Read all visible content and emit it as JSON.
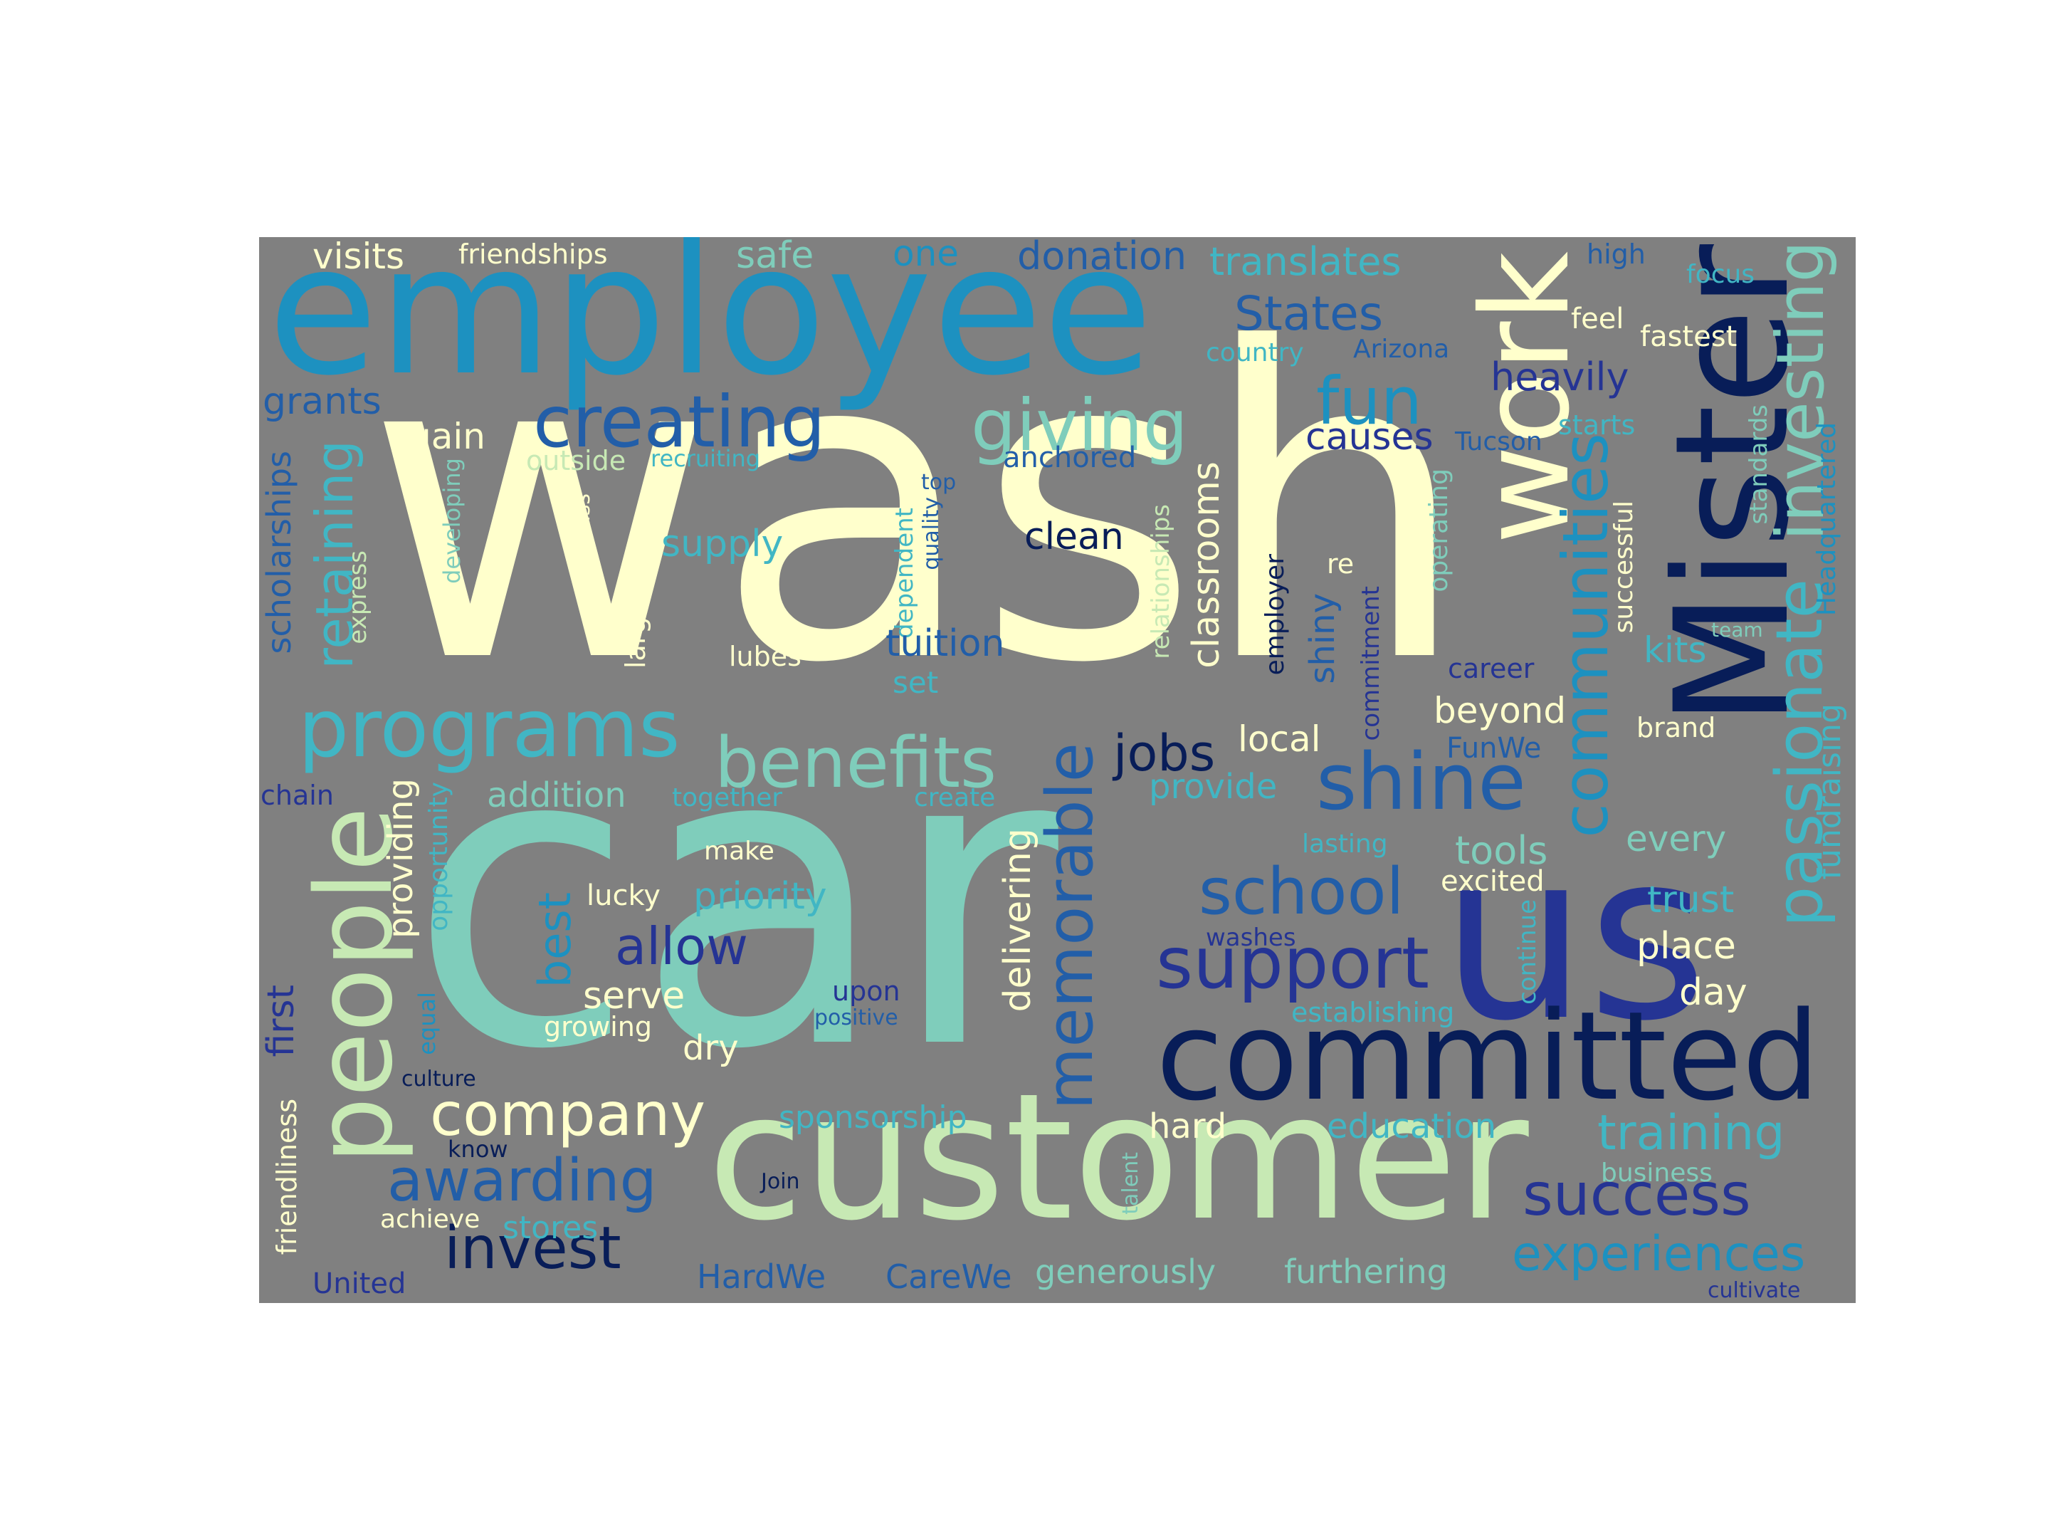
{
  "palette": {
    "background": "#808080",
    "page": "#ffffff",
    "cream": "#ffffcc",
    "light_green": "#c7e9b4",
    "teal": "#7fcdbb",
    "aqua": "#41b6c4",
    "blue": "#1d91c0",
    "mid_blue": "#225ea8",
    "indigo": "#253494",
    "navy": "#081d58"
  },
  "words": [
    {
      "text": "wash",
      "color": "#ffffcc"
    },
    {
      "text": "car",
      "color": "#7fcdbb"
    },
    {
      "text": "employee",
      "color": "#1d91c0"
    },
    {
      "text": "customer",
      "color": "#c7e9b4"
    },
    {
      "text": "us",
      "color": "#253494"
    },
    {
      "text": "Mister",
      "color": "#081d58"
    },
    {
      "text": "committed",
      "color": "#081d58"
    },
    {
      "text": "work",
      "color": "#ffffcc"
    },
    {
      "text": "people",
      "color": "#c7e9b4"
    },
    {
      "text": "programs",
      "color": "#41b6c4"
    },
    {
      "text": "creating",
      "color": "#225ea8"
    },
    {
      "text": "giving",
      "color": "#7fcdbb"
    },
    {
      "text": "benefits",
      "color": "#7fcdbb"
    },
    {
      "text": "shine",
      "color": "#225ea8"
    },
    {
      "text": "communities",
      "color": "#1d91c0"
    },
    {
      "text": "investing",
      "color": "#7fcdbb"
    },
    {
      "text": "passionate",
      "color": "#41b6c4"
    },
    {
      "text": "support",
      "color": "#253494"
    },
    {
      "text": "school",
      "color": "#225ea8"
    },
    {
      "text": "memorable",
      "color": "#225ea8"
    },
    {
      "text": "success",
      "color": "#253494"
    },
    {
      "text": "company",
      "color": "#ffffcc"
    },
    {
      "text": "awarding",
      "color": "#225ea8"
    },
    {
      "text": "invest",
      "color": "#081d58"
    },
    {
      "text": "experiences",
      "color": "#1d91c0"
    },
    {
      "text": "training",
      "color": "#41b6c4"
    },
    {
      "text": "retaining",
      "color": "#41b6c4"
    },
    {
      "text": "allow",
      "color": "#253494"
    },
    {
      "text": "jobs",
      "color": "#081d58"
    },
    {
      "text": "fun",
      "color": "#1d91c0"
    },
    {
      "text": "States",
      "color": "#225ea8"
    },
    {
      "text": "visits",
      "color": "#ffffcc"
    },
    {
      "text": "friendships",
      "color": "#ffffcc"
    },
    {
      "text": "safe",
      "color": "#7fcdbb"
    },
    {
      "text": "one",
      "color": "#1d91c0"
    },
    {
      "text": "donation",
      "color": "#225ea8"
    },
    {
      "text": "translates",
      "color": "#41b6c4"
    },
    {
      "text": "high",
      "color": "#225ea8"
    },
    {
      "text": "focus",
      "color": "#41b6c4"
    },
    {
      "text": "feel",
      "color": "#ffffcc"
    },
    {
      "text": "fastest",
      "color": "#ffffcc"
    },
    {
      "text": "country",
      "color": "#41b6c4"
    },
    {
      "text": "Arizona",
      "color": "#225ea8"
    },
    {
      "text": "heavily",
      "color": "#253494"
    },
    {
      "text": "grants",
      "color": "#225ea8"
    },
    {
      "text": "gain",
      "color": "#ffffcc"
    },
    {
      "text": "outside",
      "color": "#c7e9b4"
    },
    {
      "text": "recruiting",
      "color": "#41b6c4"
    },
    {
      "text": "anchored",
      "color": "#225ea8"
    },
    {
      "text": "causes",
      "color": "#253494"
    },
    {
      "text": "Tucson",
      "color": "#225ea8"
    },
    {
      "text": "starts",
      "color": "#41b6c4"
    },
    {
      "text": "standards",
      "color": "#7fcdbb"
    },
    {
      "text": "Headquartered",
      "color": "#1d91c0"
    },
    {
      "text": "scholarships",
      "color": "#225ea8"
    },
    {
      "text": "developing",
      "color": "#7fcdbb"
    },
    {
      "text": "class",
      "color": "#ffffcc"
    },
    {
      "text": "express",
      "color": "#c7e9b4"
    },
    {
      "text": "supply",
      "color": "#41b6c4"
    },
    {
      "text": "top",
      "color": "#225ea8"
    },
    {
      "text": "quality",
      "color": "#225ea8"
    },
    {
      "text": "dependent",
      "color": "#41b6c4"
    },
    {
      "text": "clean",
      "color": "#081d58"
    },
    {
      "text": "relationships",
      "color": "#c7e9b4"
    },
    {
      "text": "classrooms",
      "color": "#ffffcc"
    },
    {
      "text": "re",
      "color": "#ffffcc"
    },
    {
      "text": "employer",
      "color": "#081d58"
    },
    {
      "text": "commitment",
      "color": "#253494"
    },
    {
      "text": "shiny",
      "color": "#225ea8"
    },
    {
      "text": "operating",
      "color": "#7fcdbb"
    },
    {
      "text": "successful",
      "color": "#ffffcc"
    },
    {
      "text": "team",
      "color": "#7fcdbb"
    },
    {
      "text": "kits",
      "color": "#41b6c4"
    },
    {
      "text": "largest",
      "color": "#ffffcc"
    },
    {
      "text": "lubes",
      "color": "#ffffcc"
    },
    {
      "text": "tuition",
      "color": "#225ea8"
    },
    {
      "text": "set",
      "color": "#41b6c4"
    },
    {
      "text": "career",
      "color": "#253494"
    },
    {
      "text": "beyond",
      "color": "#ffffcc"
    },
    {
      "text": "brand",
      "color": "#ffffcc"
    },
    {
      "text": "fundraising",
      "color": "#41b6c4"
    },
    {
      "text": "local",
      "color": "#ffffcc"
    },
    {
      "text": "FunWe",
      "color": "#225ea8"
    },
    {
      "text": "chain",
      "color": "#253494"
    },
    {
      "text": "providing",
      "color": "#ffffcc"
    },
    {
      "text": "opportunity",
      "color": "#41b6c4"
    },
    {
      "text": "addition",
      "color": "#7fcdbb"
    },
    {
      "text": "together",
      "color": "#41b6c4"
    },
    {
      "text": "create",
      "color": "#41b6c4"
    },
    {
      "text": "provide",
      "color": "#41b6c4"
    },
    {
      "text": "lasting",
      "color": "#41b6c4"
    },
    {
      "text": "tools",
      "color": "#7fcdbb"
    },
    {
      "text": "every",
      "color": "#7fcdbb"
    },
    {
      "text": "make",
      "color": "#ffffcc"
    },
    {
      "text": "excited",
      "color": "#ffffcc"
    },
    {
      "text": "lucky",
      "color": "#ffffcc"
    },
    {
      "text": "priority",
      "color": "#41b6c4"
    },
    {
      "text": "best",
      "color": "#1d91c0"
    },
    {
      "text": "delivering",
      "color": "#ffffcc"
    },
    {
      "text": "trust",
      "color": "#41b6c4"
    },
    {
      "text": "washes",
      "color": "#253494"
    },
    {
      "text": "place",
      "color": "#ffffcc"
    },
    {
      "text": "continue",
      "color": "#41b6c4"
    },
    {
      "text": "first",
      "color": "#253494"
    },
    {
      "text": "equal",
      "color": "#1d91c0"
    },
    {
      "text": "serve",
      "color": "#ffffcc"
    },
    {
      "text": "growing",
      "color": "#ffffcc"
    },
    {
      "text": "upon",
      "color": "#253494"
    },
    {
      "text": "positive",
      "color": "#225ea8"
    },
    {
      "text": "establishing",
      "color": "#41b6c4"
    },
    {
      "text": "day",
      "color": "#ffffcc"
    },
    {
      "text": "dry",
      "color": "#ffffcc"
    },
    {
      "text": "culture",
      "color": "#081d58"
    },
    {
      "text": "sponsorship",
      "color": "#41b6c4"
    },
    {
      "text": "hard",
      "color": "#ffffcc"
    },
    {
      "text": "education",
      "color": "#41b6c4"
    },
    {
      "text": "friendliness",
      "color": "#ffffcc"
    },
    {
      "text": "know",
      "color": "#081d58"
    },
    {
      "text": "achieve",
      "color": "#ffffcc"
    },
    {
      "text": "stores",
      "color": "#41b6c4"
    },
    {
      "text": "Join",
      "color": "#081d58"
    },
    {
      "text": "talent",
      "color": "#7fcdbb"
    },
    {
      "text": "business",
      "color": "#7fcdbb"
    },
    {
      "text": "United",
      "color": "#253494"
    },
    {
      "text": "HardWe",
      "color": "#225ea8"
    },
    {
      "text": "CareWe",
      "color": "#225ea8"
    },
    {
      "text": "generously",
      "color": "#7fcdbb"
    },
    {
      "text": "furthering",
      "color": "#7fcdbb"
    },
    {
      "text": "cultivate",
      "color": "#253494"
    }
  ]
}
